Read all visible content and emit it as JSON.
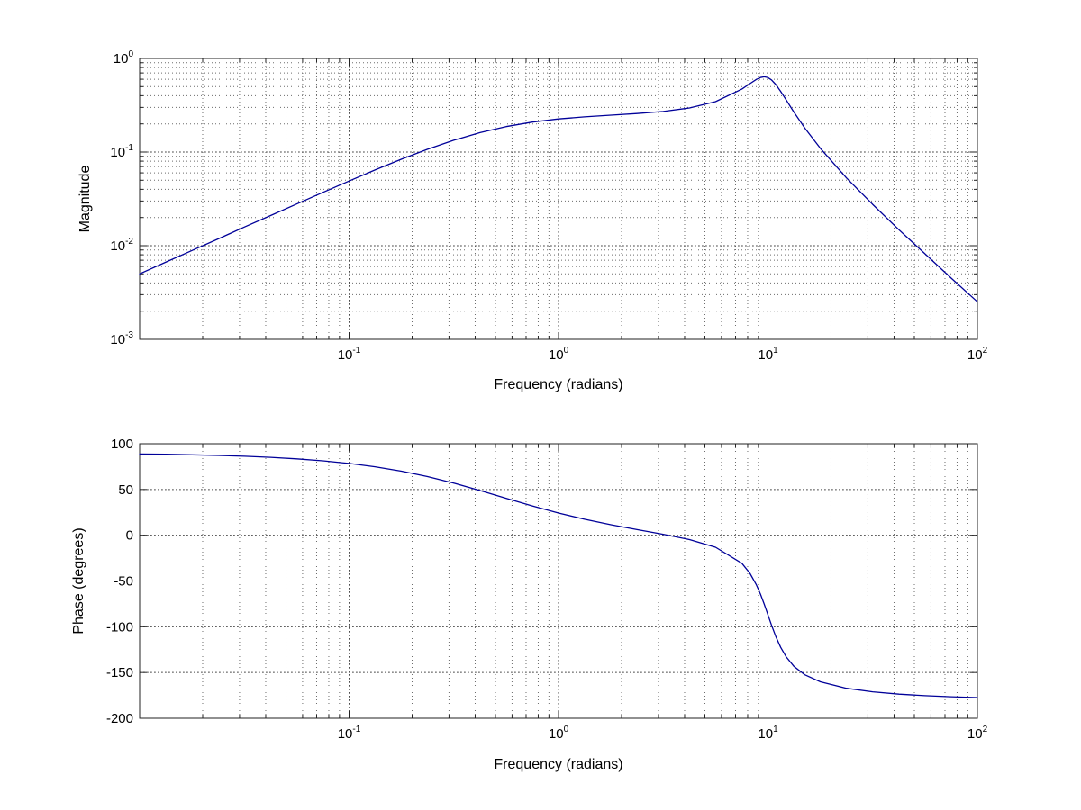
{
  "figure": {
    "background": "#ffffff",
    "curve_color": "#000099",
    "grid_major_color": "#4a4a4a",
    "grid_minor_color": "#6b6b6b",
    "axis_color": "#222222",
    "text_color": "#000000"
  },
  "chart_data": [
    {
      "type": "line",
      "title": "",
      "xlabel": "Frequency (radians)",
      "ylabel": "Magnitude",
      "x_scale": "log",
      "y_scale": "log",
      "xlim": [
        0.01,
        100
      ],
      "ylim": [
        0.001,
        1
      ],
      "x_major_ticks": [
        0.1,
        1,
        10,
        100
      ],
      "x_tick_labels": [
        {
          "base": "10",
          "exp": "-1"
        },
        {
          "base": "10",
          "exp": "0"
        },
        {
          "base": "10",
          "exp": "1"
        },
        {
          "base": "10",
          "exp": "2"
        }
      ],
      "y_major_ticks": [
        1,
        0.1,
        0.01,
        0.001
      ],
      "y_tick_labels": [
        {
          "base": "10",
          "exp": "0"
        },
        {
          "base": "10",
          "exp": "-1"
        },
        {
          "base": "10",
          "exp": "-2"
        },
        {
          "base": "10",
          "exp": "-3"
        }
      ],
      "grid": true,
      "minor_grid": true,
      "legend": null,
      "series": [
        {
          "name": "magnitude",
          "x": [
            0.01,
            0.0133,
            0.0178,
            0.0237,
            0.0316,
            0.0422,
            0.0562,
            0.075,
            0.1,
            0.133,
            0.178,
            0.237,
            0.316,
            0.422,
            0.562,
            0.75,
            1,
            1.33,
            1.78,
            2.37,
            3.16,
            4.22,
            5.62,
            7.5,
            8.2,
            8.8,
            9.2,
            9.6,
            10,
            10.4,
            10.9,
            11.5,
            12.2,
            13.3,
            15,
            17.8,
            23.7,
            31.6,
            42.2,
            56.2,
            75,
            100
          ],
          "y": [
            0.005,
            0.00665,
            0.0089,
            0.0118,
            0.0158,
            0.021,
            0.0279,
            0.0371,
            0.049,
            0.0643,
            0.0839,
            0.1071,
            0.1336,
            0.1614,
            0.187,
            0.209,
            0.2257,
            0.2379,
            0.2479,
            0.2579,
            0.2717,
            0.2959,
            0.3458,
            0.4702,
            0.5383,
            0.597,
            0.626,
            0.637,
            0.6242,
            0.589,
            0.5259,
            0.4446,
            0.3618,
            0.2672,
            0.1802,
            0.1095,
            0.053,
            0.0276,
            0.0148,
            0.0082,
            0.0045,
            0.00252
          ]
        }
      ]
    },
    {
      "type": "line",
      "title": "",
      "xlabel": "Frequency (radians)",
      "ylabel": "Phase (degrees)",
      "x_scale": "log",
      "y_scale": "linear",
      "xlim": [
        0.01,
        100
      ],
      "ylim": [
        -200,
        100
      ],
      "x_major_ticks": [
        0.1,
        1,
        10,
        100
      ],
      "x_tick_labels": [
        {
          "base": "10",
          "exp": "-1"
        },
        {
          "base": "10",
          "exp": "0"
        },
        {
          "base": "10",
          "exp": "1"
        },
        {
          "base": "10",
          "exp": "2"
        }
      ],
      "y_major_ticks": [
        100,
        50,
        0,
        -50,
        -100,
        -150,
        -200
      ],
      "y_tick_labels": [
        "100",
        "50",
        "0",
        "-50",
        "-100",
        "-150",
        "-200"
      ],
      "grid": true,
      "minor_grid": true,
      "legend": null,
      "series": [
        {
          "name": "phase",
          "x": [
            0.01,
            0.0133,
            0.0178,
            0.0237,
            0.0316,
            0.0422,
            0.0562,
            0.075,
            0.1,
            0.133,
            0.178,
            0.237,
            0.316,
            0.422,
            0.562,
            0.75,
            1,
            1.33,
            1.78,
            2.37,
            3.16,
            4.22,
            5.62,
            7.5,
            8.2,
            8.8,
            9.2,
            9.6,
            10,
            10.4,
            10.9,
            11.5,
            12.2,
            13.3,
            15,
            17.8,
            23.7,
            31.6,
            42.2,
            56.2,
            75,
            100
          ],
          "y": [
            88.8,
            88.5,
            87.9,
            87.2,
            86.3,
            85.1,
            83.5,
            81.3,
            78.5,
            74.8,
            70.0,
            64.1,
            57.0,
            48.9,
            40.4,
            32.0,
            24.3,
            17.5,
            11.5,
            6.2,
            1.0,
            -4.8,
            -13.1,
            -30.6,
            -41.6,
            -54.1,
            -64.2,
            -75.5,
            -87.1,
            -98.4,
            -110.7,
            -122.5,
            -132.7,
            -143.2,
            -152.5,
            -160.2,
            -167.2,
            -171.1,
            -173.6,
            -175.3,
            -176.5,
            -177.4
          ]
        }
      ]
    }
  ]
}
